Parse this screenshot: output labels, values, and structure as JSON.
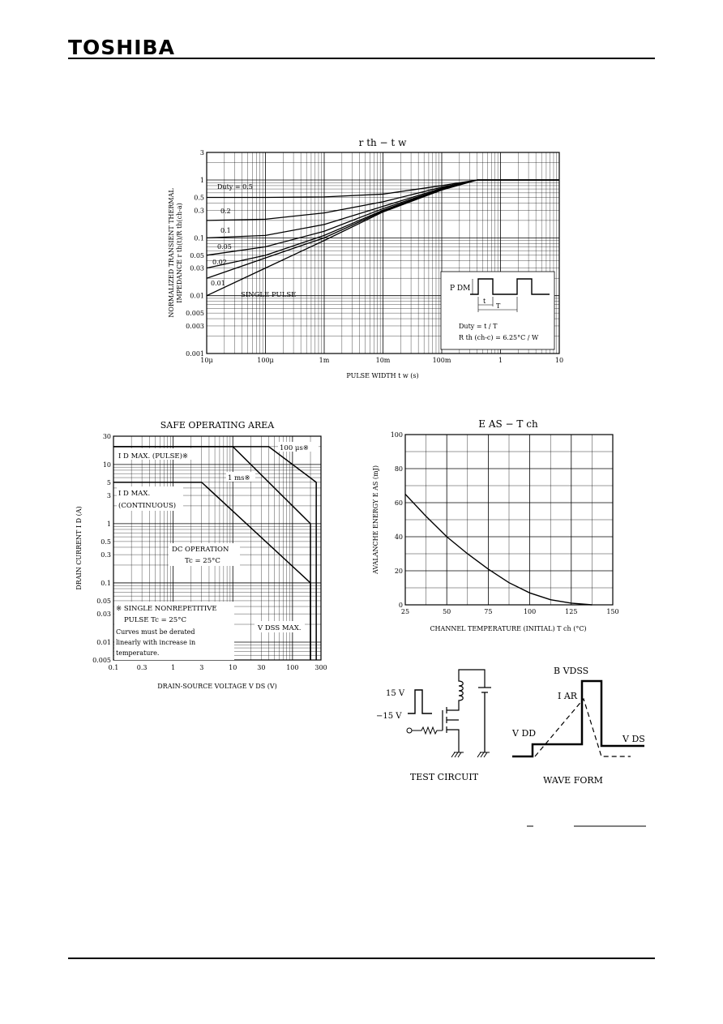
{
  "header": {
    "brand": "TOSHIBA"
  },
  "chart_data": [
    {
      "type": "line",
      "title": "r th − t w",
      "xlabel": "PULSE WIDTH  t w  (s)",
      "ylabel_line1": "NORMALIZED TRANSIENT THERMAL",
      "ylabel_line2": "IMPEDANCE   r th(t)/R th(ch-a)",
      "x_scale": "log",
      "y_scale": "log",
      "xlim": [
        1e-05,
        10
      ],
      "ylim": [
        0.001,
        3
      ],
      "x_ticks": [
        1e-05,
        0.0001,
        0.001,
        0.01,
        0.1,
        1,
        10
      ],
      "x_tick_labels": [
        "10μ",
        "100μ",
        "1m",
        "10m",
        "100m",
        "1",
        "10"
      ],
      "y_ticks": [
        0.001,
        0.003,
        0.005,
        0.01,
        0.03,
        0.05,
        0.1,
        0.3,
        0.5,
        1,
        3
      ],
      "y_tick_labels": [
        "0.001",
        "0.003",
        "0.005",
        "0.01",
        "0.03",
        "0.05",
        "0.1",
        "0.3",
        "0.5",
        "1",
        "3"
      ],
      "x": [
        1e-05,
        0.0001,
        0.001,
        0.01,
        0.1,
        0.4,
        1,
        10
      ],
      "series": [
        {
          "name": "Duty = 0.5",
          "values": [
            0.5,
            0.5,
            0.51,
            0.57,
            0.8,
            1.0,
            1.0,
            1.0
          ]
        },
        {
          "name": "0.2",
          "values": [
            0.2,
            0.21,
            0.27,
            0.42,
            0.75,
            1.0,
            1.0,
            1.0
          ]
        },
        {
          "name": "0.1",
          "values": [
            0.1,
            0.11,
            0.17,
            0.35,
            0.72,
            1.0,
            1.0,
            1.0
          ]
        },
        {
          "name": "0.05",
          "values": [
            0.05,
            0.07,
            0.13,
            0.32,
            0.7,
            1.0,
            1.0,
            1.0
          ]
        },
        {
          "name": "0.02",
          "values": [
            0.03,
            0.05,
            0.11,
            0.3,
            0.69,
            1.0,
            1.0,
            1.0
          ]
        },
        {
          "name": "0.01",
          "values": [
            0.02,
            0.045,
            0.1,
            0.29,
            0.68,
            1.0,
            1.0,
            1.0
          ]
        },
        {
          "name": "SINGLE PULSE",
          "values": [
            0.01,
            0.03,
            0.09,
            0.28,
            0.67,
            1.0,
            1.0,
            1.0
          ]
        }
      ],
      "inset": {
        "pdm_label": "P DM",
        "t_label": "t",
        "T_label": "T",
        "duty_text": "Duty = t / T",
        "rth_text": "R th (ch-c) = 6.25°C / W"
      }
    },
    {
      "type": "line",
      "title": "SAFE OPERATING AREA",
      "xlabel": "DRAIN-SOURCE VOLTAGE   V DS   (V)",
      "ylabel": "DRAIN CURRENT   I D   (A)",
      "x_scale": "log",
      "y_scale": "log",
      "xlim": [
        0.1,
        300
      ],
      "ylim": [
        0.005,
        30
      ],
      "x_ticks": [
        0.1,
        0.3,
        1,
        3,
        10,
        30,
        100,
        300
      ],
      "x_tick_labels": [
        "0.1",
        "0.3",
        "1",
        "3",
        "10",
        "30",
        "100",
        "300"
      ],
      "y_ticks": [
        0.005,
        0.01,
        0.03,
        0.05,
        0.1,
        0.3,
        0.5,
        1,
        3,
        5,
        10,
        30
      ],
      "y_tick_labels": [
        "0.005",
        "0.01",
        "0.03",
        "0.05",
        "0.1",
        "0.3",
        "0.5",
        "1",
        "3",
        "5",
        "10",
        "30"
      ],
      "series": [
        {
          "name": "100 μs※",
          "x": [
            0.1,
            40,
            250,
            250
          ],
          "y": [
            20,
            20,
            5,
            0.005
          ]
        },
        {
          "name": "1 ms※",
          "x": [
            0.1,
            10,
            200,
            200
          ],
          "y": [
            20,
            20,
            1,
            0.005
          ]
        },
        {
          "name": "DC OPERATION Tc = 25°C",
          "x": [
            0.1,
            3,
            200,
            200
          ],
          "y": [
            5,
            5,
            0.1,
            0.005
          ]
        }
      ],
      "labels": {
        "id_pulse": "I D  MAX. (PULSE)※",
        "id_cont_1": "I D  MAX.",
        "id_cont_2": "(CONTINUOUS)",
        "dc_1": "DC OPERATION",
        "dc_2": "Tc = 25°C",
        "us100": "100 μs※",
        "ms1": "1 ms※",
        "note_1": "※ SINGLE NONREPETITIVE",
        "note_2": "PULSE Tc = 25°C",
        "note_3": "Curves must be derated",
        "note_4": "linearly with increase in",
        "note_5": "temperature.",
        "vdss": "V DSS  MAX."
      }
    },
    {
      "type": "line",
      "title": "E AS  −  T ch",
      "xlabel": "CHANNEL TEMPERATURE (INITIAL)   T ch   (°C)",
      "ylabel": "AVALANCHE ENERGY   E AS   (mJ)",
      "xlim": [
        25,
        150
      ],
      "ylim": [
        0,
        100
      ],
      "x_ticks": [
        25,
        50,
        75,
        100,
        125,
        150
      ],
      "y_ticks": [
        0,
        20,
        40,
        60,
        80,
        100
      ],
      "x": [
        25,
        37.5,
        50,
        62.5,
        75,
        87.5,
        100,
        112.5,
        125,
        137.5
      ],
      "values": [
        65,
        52,
        40,
        30,
        21,
        13,
        7,
        3,
        1,
        0
      ]
    }
  ],
  "test_circuit": {
    "v_high": "15 V",
    "v_low": "−15 V",
    "caption": "TEST CIRCUIT"
  },
  "wave_form": {
    "bvdss": "B VDSS",
    "iar": "I AR",
    "vdd": "V DD",
    "vds": "V DS",
    "caption": "WAVE FORM"
  }
}
